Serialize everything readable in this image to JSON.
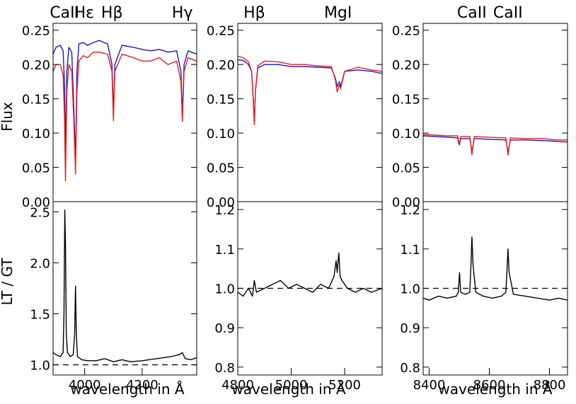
{
  "figure": {
    "ylabel_top": "Flux",
    "ylabel_bottom": "LT / GT",
    "xlabel": "wavelength in Å"
  },
  "colors": {
    "series_a": "#1a17c8",
    "series_b": "#e81c1c",
    "ratio": "#000000"
  },
  "chart_data": [
    {
      "type": "line",
      "panel": "top-left",
      "xlim": [
        3890,
        4390
      ],
      "ylim": [
        0,
        0.26
      ],
      "yticks": [
        "0.00",
        "0.05",
        "0.10",
        "0.15",
        "0.20",
        "0.25"
      ],
      "line_labels": [
        {
          "text": "CaII",
          "x": 3930
        },
        {
          "text": "Hε",
          "x": 3998
        },
        {
          "text": "Hβ",
          "x": 4095
        },
        {
          "text": "Hγ",
          "x": 4340
        }
      ],
      "series": [
        {
          "color": "blue",
          "x": [
            3890,
            3900,
            3915,
            3925,
            3930,
            3933,
            3938,
            3945,
            3955,
            3962,
            3968,
            3973,
            3980,
            3995,
            4010,
            4030,
            4050,
            4080,
            4095,
            4100,
            4105,
            4130,
            4170,
            4200,
            4230,
            4260,
            4290,
            4320,
            4335,
            4340,
            4346,
            4360,
            4390
          ],
          "y": [
            0.215,
            0.225,
            0.228,
            0.22,
            0.17,
            0.075,
            0.19,
            0.225,
            0.218,
            0.14,
            0.06,
            0.19,
            0.23,
            0.232,
            0.228,
            0.232,
            0.235,
            0.23,
            0.2,
            0.13,
            0.2,
            0.228,
            0.225,
            0.222,
            0.22,
            0.222,
            0.218,
            0.22,
            0.19,
            0.125,
            0.2,
            0.22,
            0.215
          ]
        },
        {
          "color": "red",
          "x": [
            3890,
            3900,
            3915,
            3925,
            3930,
            3933,
            3938,
            3945,
            3955,
            3962,
            3968,
            3973,
            3980,
            3995,
            4010,
            4030,
            4050,
            4080,
            4095,
            4100,
            4105,
            4130,
            4170,
            4200,
            4230,
            4260,
            4290,
            4320,
            4335,
            4340,
            4346,
            4360,
            4390
          ],
          "y": [
            0.19,
            0.2,
            0.2,
            0.185,
            0.12,
            0.03,
            0.16,
            0.2,
            0.19,
            0.12,
            0.04,
            0.16,
            0.205,
            0.213,
            0.21,
            0.218,
            0.218,
            0.215,
            0.19,
            0.118,
            0.19,
            0.215,
            0.21,
            0.205,
            0.205,
            0.21,
            0.2,
            0.205,
            0.175,
            0.117,
            0.19,
            0.21,
            0.205
          ]
        }
      ]
    },
    {
      "type": "line",
      "panel": "top-middle",
      "xlim": [
        4800,
        5340
      ],
      "ylim": [
        0,
        0.26
      ],
      "yticks": [
        "0.00",
        "0.05",
        "0.10",
        "0.15",
        "0.20",
        "0.25"
      ],
      "line_labels": [
        {
          "text": "Hβ",
          "x": 4862
        },
        {
          "text": "MgI",
          "x": 5175
        }
      ],
      "series": [
        {
          "color": "blue",
          "x": [
            4800,
            4820,
            4840,
            4852,
            4858,
            4862,
            4866,
            4875,
            4900,
            4950,
            5000,
            5050,
            5100,
            5150,
            5165,
            5172,
            5180,
            5185,
            5200,
            5250,
            5300,
            5340
          ],
          "y": [
            0.207,
            0.206,
            0.2,
            0.19,
            0.15,
            0.115,
            0.16,
            0.195,
            0.2,
            0.2,
            0.197,
            0.197,
            0.196,
            0.195,
            0.18,
            0.168,
            0.175,
            0.168,
            0.19,
            0.192,
            0.19,
            0.187
          ]
        },
        {
          "color": "red",
          "x": [
            4800,
            4820,
            4840,
            4852,
            4858,
            4862,
            4866,
            4875,
            4900,
            4950,
            5000,
            5050,
            5100,
            5150,
            5165,
            5172,
            5180,
            5185,
            5200,
            5250,
            5300,
            5340
          ],
          "y": [
            0.212,
            0.21,
            0.204,
            0.19,
            0.148,
            0.112,
            0.16,
            0.198,
            0.205,
            0.204,
            0.2,
            0.2,
            0.198,
            0.197,
            0.178,
            0.16,
            0.17,
            0.165,
            0.19,
            0.196,
            0.192,
            0.19
          ]
        }
      ]
    },
    {
      "type": "line",
      "panel": "top-right",
      "xlim": [
        8380,
        8860
      ],
      "ylim": [
        0,
        0.26
      ],
      "yticks": [
        "0.00",
        "0.05",
        "0.10",
        "0.15",
        "0.20",
        "0.25"
      ],
      "line_labels": [
        {
          "text": "CaII",
          "x": 8542
        },
        {
          "text": "CaII",
          "x": 8662
        }
      ],
      "series": [
        {
          "color": "blue",
          "x": [
            8380,
            8420,
            8460,
            8495,
            8498,
            8501,
            8505,
            8535,
            8540,
            8542,
            8545,
            8550,
            8600,
            8655,
            8660,
            8662,
            8665,
            8670,
            8720,
            8780,
            8820,
            8860
          ],
          "y": [
            0.096,
            0.095,
            0.094,
            0.093,
            0.085,
            0.083,
            0.092,
            0.092,
            0.08,
            0.07,
            0.08,
            0.092,
            0.091,
            0.09,
            0.078,
            0.07,
            0.078,
            0.09,
            0.09,
            0.089,
            0.088,
            0.087
          ]
        },
        {
          "color": "red",
          "x": [
            8380,
            8420,
            8460,
            8495,
            8498,
            8501,
            8505,
            8535,
            8540,
            8542,
            8545,
            8550,
            8600,
            8655,
            8660,
            8662,
            8665,
            8670,
            8720,
            8780,
            8820,
            8860
          ],
          "y": [
            0.098,
            0.097,
            0.096,
            0.096,
            0.088,
            0.084,
            0.095,
            0.095,
            0.078,
            0.068,
            0.078,
            0.095,
            0.094,
            0.093,
            0.076,
            0.068,
            0.076,
            0.093,
            0.092,
            0.092,
            0.09,
            0.09
          ]
        }
      ]
    },
    {
      "type": "line",
      "panel": "bottom-left",
      "xlim": [
        3890,
        4390
      ],
      "ylim": [
        0.9,
        2.6
      ],
      "yticks": [
        "1.0",
        "1.5",
        "2.0",
        "2.5"
      ],
      "ytick_values": [
        1.0,
        1.5,
        2.0,
        2.5
      ],
      "xticks": [
        "4000",
        "4200"
      ],
      "xtick_values": [
        4000,
        4200
      ],
      "reference_line": 1.0,
      "series": [
        {
          "color": "black",
          "x": [
            3890,
            3900,
            3915,
            3925,
            3928,
            3931,
            3933,
            3936,
            3940,
            3950,
            3960,
            3965,
            3968,
            3971,
            3975,
            3990,
            4010,
            4040,
            4070,
            4100,
            4130,
            4160,
            4200,
            4250,
            4300,
            4330,
            4340,
            4350,
            4370,
            4390
          ],
          "y": [
            1.12,
            1.1,
            1.08,
            1.12,
            1.5,
            2.52,
            2.2,
            1.3,
            1.12,
            1.08,
            1.1,
            1.3,
            1.77,
            1.3,
            1.08,
            1.05,
            1.04,
            1.04,
            1.06,
            1.03,
            1.05,
            1.03,
            1.04,
            1.06,
            1.08,
            1.1,
            1.12,
            1.06,
            1.05,
            1.07
          ]
        }
      ]
    },
    {
      "type": "line",
      "panel": "bottom-middle",
      "xlim": [
        4800,
        5340
      ],
      "ylim": [
        0.78,
        1.22
      ],
      "yticks": [
        "0.8",
        "0.9",
        "1.0",
        "1.1",
        "1.2"
      ],
      "ytick_values": [
        0.8,
        0.9,
        1.0,
        1.1,
        1.2
      ],
      "xticks": [
        "4800",
        "5000",
        "5200"
      ],
      "xtick_values": [
        4800,
        5000,
        5200
      ],
      "reference_line": 1.0,
      "series": [
        {
          "color": "black",
          "x": [
            4800,
            4820,
            4840,
            4855,
            4862,
            4870,
            4900,
            4930,
            4960,
            4990,
            5020,
            5050,
            5080,
            5110,
            5140,
            5160,
            5168,
            5172,
            5178,
            5183,
            5190,
            5210,
            5240,
            5270,
            5300,
            5340
          ],
          "y": [
            0.99,
            0.98,
            1.0,
            0.98,
            1.02,
            0.99,
            1.0,
            1.01,
            1.02,
            1.0,
            1.01,
            1.0,
            0.99,
            1.01,
            1.0,
            1.03,
            1.07,
            1.04,
            1.09,
            1.03,
            1.02,
            1.0,
            0.99,
            1.0,
            0.99,
            1.0
          ]
        }
      ]
    },
    {
      "type": "line",
      "panel": "bottom-right",
      "xlim": [
        8380,
        8860
      ],
      "ylim": [
        0.78,
        1.22
      ],
      "yticks": [
        "0.8",
        "0.9",
        "1.0",
        "1.1",
        "1.2"
      ],
      "ytick_values": [
        0.8,
        0.9,
        1.0,
        1.1,
        1.2
      ],
      "xticks": [
        "8400",
        "8600",
        "8800"
      ],
      "xtick_values": [
        8400,
        8600,
        8800
      ],
      "reference_line": 1.0,
      "series": [
        {
          "color": "black",
          "x": [
            8380,
            8400,
            8430,
            8460,
            8490,
            8497,
            8501,
            8505,
            8520,
            8535,
            8539,
            8542,
            8546,
            8555,
            8580,
            8610,
            8640,
            8655,
            8659,
            8662,
            8666,
            8680,
            8720,
            8760,
            8800,
            8830,
            8860
          ],
          "y": [
            0.975,
            0.97,
            0.98,
            0.975,
            0.98,
            0.99,
            1.04,
            0.99,
            0.985,
            0.99,
            1.06,
            1.13,
            1.06,
            0.99,
            0.98,
            0.975,
            0.98,
            0.99,
            1.05,
            1.1,
            1.04,
            0.985,
            0.98,
            0.975,
            0.97,
            0.975,
            0.97
          ]
        }
      ]
    }
  ]
}
